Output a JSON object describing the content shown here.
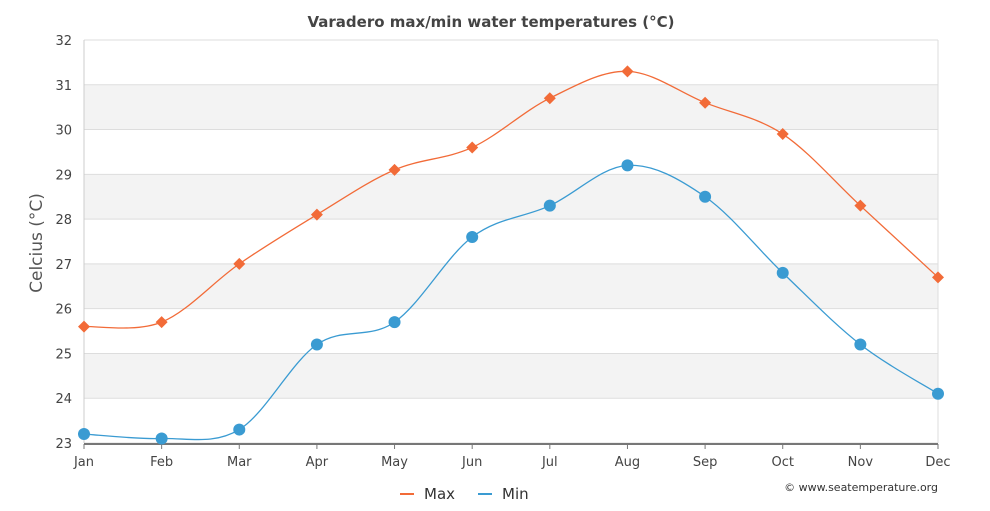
{
  "chart_data": {
    "type": "line",
    "title": "Varadero max/min water temperatures (°C)",
    "ylabel": "Celcius (°C)",
    "xlabel": "",
    "categories": [
      "Jan",
      "Feb",
      "Mar",
      "Apr",
      "May",
      "Jun",
      "Jul",
      "Aug",
      "Sep",
      "Oct",
      "Nov",
      "Dec"
    ],
    "ylim": [
      23,
      32
    ],
    "yticks": [
      23,
      24,
      25,
      26,
      27,
      28,
      29,
      30,
      31,
      32
    ],
    "grid": "alternating horizontal bands",
    "legend_position": "bottom-center",
    "series": [
      {
        "name": "Max",
        "color": "#f26b38",
        "marker": "diamond",
        "values": [
          25.6,
          25.7,
          27.0,
          28.1,
          29.1,
          29.6,
          30.7,
          31.3,
          30.6,
          29.9,
          28.3,
          26.7
        ]
      },
      {
        "name": "Min",
        "color": "#3a9bd2",
        "marker": "circle",
        "values": [
          23.2,
          23.1,
          23.3,
          25.2,
          25.7,
          27.6,
          28.3,
          29.2,
          28.5,
          26.8,
          25.2,
          24.1
        ]
      }
    ],
    "credit": "© www.seatemperature.org"
  }
}
